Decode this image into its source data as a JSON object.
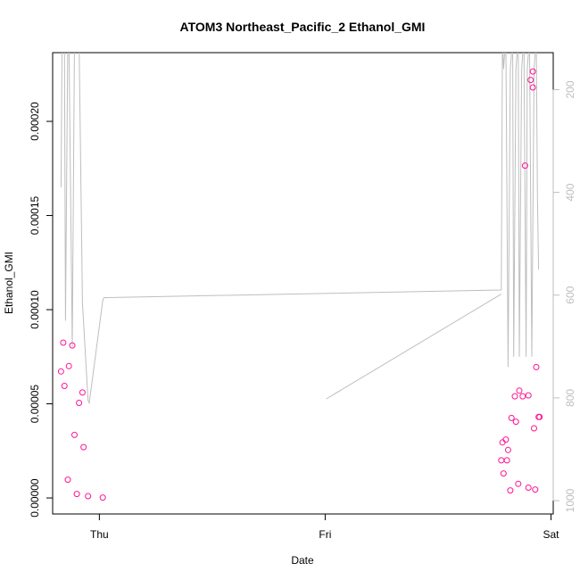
{
  "chart_data": {
    "type": "scatter",
    "title": "ATOM3 Northeast_Pacific_2 Ethanol_GMI",
    "xlabel": "Date",
    "ylabel": "Ethanol_GMI",
    "x_ticks": [
      {
        "label": "Thu",
        "x": 0
      },
      {
        "label": "Fri",
        "x": 1
      },
      {
        "label": "Sat",
        "x": 2
      }
    ],
    "xlim": [
      -0.207,
      2.01
    ],
    "ylim": [
      -8.5e-06,
      0.0002365
    ],
    "y_ticks": [
      0.0,
      5e-05,
      0.0001,
      0.00015,
      0.0002
    ],
    "y_tick_labels": [
      "0.00000",
      "0.00005",
      "0.00010",
      "0.00015",
      "0.00020"
    ],
    "y2_ticks": [
      200,
      400,
      600,
      800,
      1000
    ],
    "y2_tick_labels": [
      "200",
      "400",
      "600",
      "800",
      "1000"
    ],
    "y2lim": [
      1026,
      128
    ],
    "y2_reversed": true,
    "colors": {
      "points": "#ff1493",
      "line": "#bebebe",
      "axis": "#000000",
      "axis_right": "#bebebe"
    },
    "series": [
      {
        "type": "points",
        "x": [
          -0.17,
          -0.16,
          -0.155,
          -0.14,
          -0.135,
          -0.12,
          -0.11,
          -0.1,
          -0.09,
          -0.075,
          -0.07,
          -0.05,
          0.015,
          1.78,
          1.785,
          1.79,
          1.8,
          1.805,
          1.81,
          1.82,
          1.825,
          1.84,
          1.845,
          1.855,
          1.86,
          1.875,
          1.885,
          1.9,
          1.9,
          1.91,
          1.92,
          1.925,
          1.92,
          1.93,
          1.935,
          1.945,
          1.95
        ],
        "y": [
          6.72e-05,
          8.25e-05,
          5.95e-05,
          9.7e-06,
          7e-05,
          8.1e-05,
          3.35e-05,
          2.1e-06,
          5.05e-05,
          5.6e-05,
          2.7e-05,
          1e-06,
          2e-07,
          2e-05,
          2.95e-05,
          1.3e-05,
          3.1e-05,
          2e-05,
          2.55e-05,
          4e-06,
          4.25e-05,
          5.4e-05,
          4.05e-05,
          7.5e-06,
          5.7e-05,
          5.4e-05,
          0.0001765,
          5.5e-06,
          5.45e-05,
          0.000222,
          0.000218,
          3.7e-05,
          0.0002265,
          4.5e-06,
          6.95e-05,
          4.3e-05,
          4.3e-05
        ]
      },
      {
        "type": "line",
        "axis": "right",
        "x": [
          -0.17,
          -0.165,
          -0.155,
          -0.15,
          -0.14,
          -0.135,
          -0.12,
          -0.11,
          -0.09,
          -0.075,
          -0.05,
          -0.045,
          0.015,
          0.02,
          1.78,
          1.785,
          1.79,
          1.8,
          1.81,
          1.82,
          1.83,
          1.835,
          1.845,
          1.855,
          1.86,
          1.87,
          1.88,
          1.89,
          1.895,
          1.905,
          1.915,
          1.925,
          1.935,
          1.94,
          1.945
        ],
        "y": [
          390,
          100,
          100,
          650,
          100,
          100,
          700,
          100,
          100,
          615,
          805,
          810,
          610,
          605,
          590,
          100,
          160,
          100,
          740,
          160,
          100,
          720,
          160,
          100,
          720,
          160,
          100,
          720,
          160,
          100,
          720,
          160,
          100,
          410,
          550
        ]
      },
      {
        "type": "line",
        "axis": "right",
        "x": [
          1.005,
          1.78
        ],
        "y": [
          802,
          598
        ]
      }
    ]
  }
}
